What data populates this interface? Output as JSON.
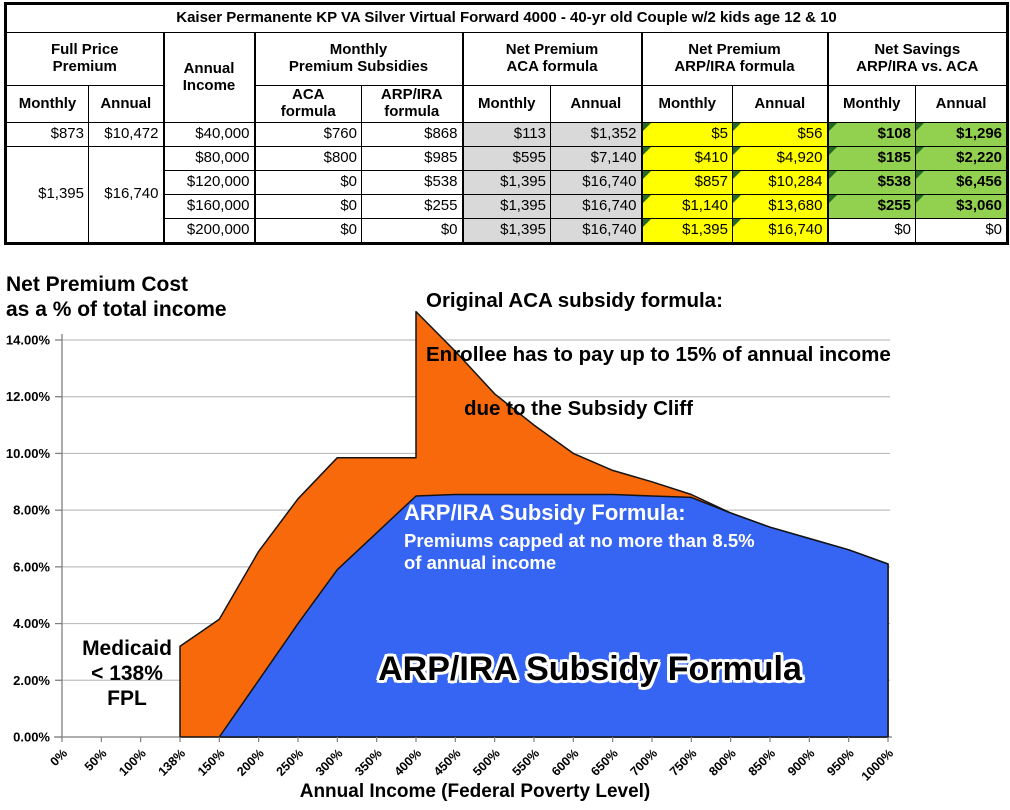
{
  "table": {
    "title": "Kaiser Permanente KP VA Silver Virtual Forward 4000 - 40-yr old Couple w/2 kids age 12 & 10",
    "headers": {
      "full_price": "Full Price\nPremium",
      "annual_income": "Annual\nIncome",
      "monthly_subsidies": "Monthly\nPremium Subsidies",
      "net_aca": "Net Premium\nACA formula",
      "net_arp": "Net Premium\nARP/IRA formula",
      "net_savings": "Net Savings\nARP/IRA vs. ACA",
      "monthly": "Monthly",
      "annual": "Annual",
      "aca_formula": "ACA\nformula",
      "arp_formula": "ARP/IRA\nformula"
    },
    "merged_full_price": {
      "monthly": "$1,395",
      "annual": "$16,740"
    },
    "rows": [
      {
        "full_monthly": "$873",
        "full_annual": "$10,472",
        "income": "$40,000",
        "sub_aca": "$760",
        "sub_arp": "$868",
        "net_aca_m": "$113",
        "net_aca_a": "$1,352",
        "net_arp_m": "$5",
        "net_arp_a": "$56",
        "save_m": "$108",
        "save_a": "$1,296"
      },
      {
        "income": "$80,000",
        "sub_aca": "$800",
        "sub_arp": "$985",
        "net_aca_m": "$595",
        "net_aca_a": "$7,140",
        "net_arp_m": "$410",
        "net_arp_a": "$4,920",
        "save_m": "$185",
        "save_a": "$2,220"
      },
      {
        "income": "$120,000",
        "sub_aca": "$0",
        "sub_arp": "$538",
        "net_aca_m": "$1,395",
        "net_aca_a": "$16,740",
        "net_arp_m": "$857",
        "net_arp_a": "$10,284",
        "save_m": "$538",
        "save_a": "$6,456"
      },
      {
        "income": "$160,000",
        "sub_aca": "$0",
        "sub_arp": "$255",
        "net_aca_m": "$1,395",
        "net_aca_a": "$16,740",
        "net_arp_m": "$1,140",
        "net_arp_a": "$13,680",
        "save_m": "$255",
        "save_a": "$3,060"
      },
      {
        "income": "$200,000",
        "sub_aca": "$0",
        "sub_arp": "$0",
        "net_aca_m": "$1,395",
        "net_aca_a": "$16,740",
        "net_arp_m": "$1,395",
        "net_arp_a": "$16,740",
        "save_m": "$0",
        "save_a": "$0"
      }
    ],
    "colors": {
      "aca_net_bg": "#D9D9D9",
      "arp_net_bg": "#FFFF00",
      "savings_bg": "#92D050",
      "flag": "#256B25"
    }
  },
  "chart_data": {
    "type": "area",
    "title": "Net Premium Cost\nas a % of total income",
    "xlabel": "Annual Income (Federal Poverty Level)",
    "ylim": [
      0,
      14
    ],
    "grid": true,
    "legend": "none",
    "yticks": [
      {
        "v": 0,
        "label": "0.00%"
      },
      {
        "v": 2,
        "label": "2.00%"
      },
      {
        "v": 4,
        "label": "4.00%"
      },
      {
        "v": 6,
        "label": "6.00%"
      },
      {
        "v": 8,
        "label": "8.00%"
      },
      {
        "v": 10,
        "label": "10.00%"
      },
      {
        "v": 12,
        "label": "12.00%"
      },
      {
        "v": 14,
        "label": "14.00%"
      }
    ],
    "categories": [
      "0%",
      "50%",
      "100%",
      "138%",
      "150%",
      "200%",
      "250%",
      "300%",
      "350%",
      "400%",
      "450%",
      "500%",
      "550%",
      "600%",
      "650%",
      "700%",
      "750%",
      "800%",
      "850%",
      "900%",
      "950%",
      "1000%"
    ],
    "series": [
      {
        "name": "Original ACA subsidy formula - net premium as % of income",
        "color": "#F8690B",
        "points": [
          [
            "138%",
            0
          ],
          [
            "138%",
            3.2
          ],
          [
            "150%",
            4.15
          ],
          [
            "200%",
            6.55
          ],
          [
            "250%",
            8.4
          ],
          [
            "300%",
            9.85
          ],
          [
            "350%",
            9.85
          ],
          [
            "400%",
            9.85
          ],
          [
            "400%",
            15.0
          ],
          [
            "450%",
            13.6
          ],
          [
            "500%",
            12.1
          ],
          [
            "550%",
            11.0
          ],
          [
            "600%",
            10.0
          ],
          [
            "650%",
            9.4
          ],
          [
            "700%",
            9.0
          ],
          [
            "750%",
            8.55
          ],
          [
            "800%",
            7.9
          ],
          [
            "850%",
            7.4
          ],
          [
            "900%",
            7.0
          ],
          [
            "950%",
            6.6
          ],
          [
            "1000%",
            6.1
          ],
          [
            "1000%",
            0
          ]
        ]
      },
      {
        "name": "ARP/IRA subsidy formula - net premium as % of income",
        "color": "#3565F2",
        "points": [
          [
            "150%",
            0
          ],
          [
            "200%",
            2.0
          ],
          [
            "250%",
            4.0
          ],
          [
            "300%",
            5.9
          ],
          [
            "350%",
            7.2
          ],
          [
            "400%",
            8.5
          ],
          [
            "450%",
            8.55
          ],
          [
            "500%",
            8.55
          ],
          [
            "550%",
            8.55
          ],
          [
            "600%",
            8.55
          ],
          [
            "650%",
            8.55
          ],
          [
            "700%",
            8.5
          ],
          [
            "750%",
            8.45
          ],
          [
            "800%",
            7.9
          ],
          [
            "850%",
            7.4
          ],
          [
            "900%",
            7.0
          ],
          [
            "950%",
            6.6
          ],
          [
            "1000%",
            6.1
          ],
          [
            "1000%",
            0
          ]
        ]
      }
    ],
    "annotations": {
      "aca_line1": "Original ACA subsidy formula:",
      "aca_line2": "Enrollee has to pay up to 15% of annual income",
      "aca_line3": "due to the Subsidy Cliff",
      "arp_heading": "ARP/IRA Subsidy Formula:",
      "arp_body": "Premiums capped at no more than 8.5%\nof annual income",
      "medicaid": "Medicaid\n< 138%\nFPL",
      "big_label": "ARP/IRA Subsidy Formula"
    }
  }
}
